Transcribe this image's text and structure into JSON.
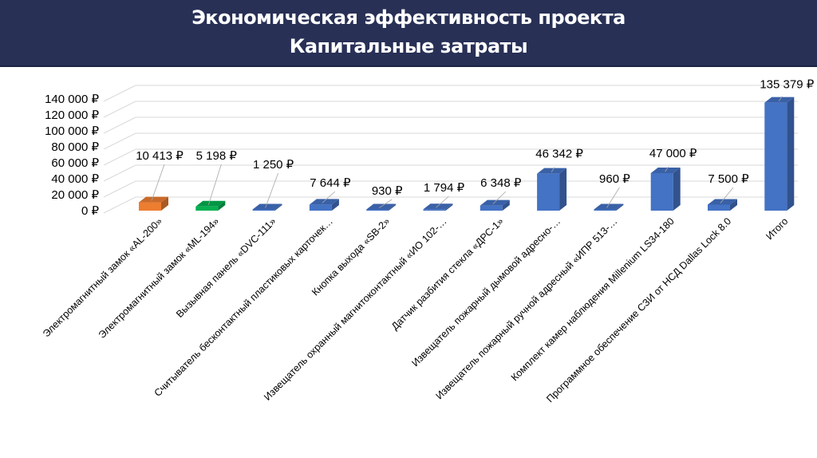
{
  "header": {
    "title_line1": "Экономическая эффективность проекта",
    "title_line2": "Капитальные затраты",
    "background_color": "#283056"
  },
  "chart_data": {
    "type": "bar",
    "style": "3d-column",
    "title": "Экономическая эффективность проекта — Капитальные затраты",
    "xlabel": "",
    "ylabel": "",
    "ylim": [
      0,
      140000
    ],
    "yticks": [
      "0 ₽",
      "20 000 ₽",
      "40 000 ₽",
      "60 000 ₽",
      "80 000 ₽",
      "100 000 ₽",
      "120 000 ₽",
      "140 000 ₽"
    ],
    "grid": true,
    "legend": "none",
    "categories": [
      "Электромагнитный замок «AL-200»",
      "Электромагнитный замок «ML-194»",
      "Вызывная панель «DVC-111»",
      "Считыватель бесконтактный пластиковых карточек…",
      "Кнопка выхода «SB-2»",
      "Извещатель охранный магнитоконтактный «ИО 102-…",
      "Датчик разбития стекла «ДРС-1»",
      "Извещатель пожарный дымовой адресно-…",
      "Извещатель пожарный ручной адресный «ИПР 513-…",
      "Комплект камер наблюдения Millenium LS34-180",
      "Программное обеспечение СЗИ от НСД Dallas Lock 8.0",
      "Итого"
    ],
    "values": [
      10413,
      5198,
      1250,
      7644,
      930,
      1794,
      6348,
      46342,
      960,
      47000,
      7500,
      135379
    ],
    "data_labels": [
      "10 413 ₽",
      "5 198 ₽",
      "1 250 ₽",
      "7 644 ₽",
      "930 ₽",
      "1 794 ₽",
      "6 348 ₽",
      "46 342 ₽",
      "960 ₽",
      "47 000 ₽",
      "7 500 ₽",
      "135 379 ₽"
    ],
    "colors": [
      "#ED7D31",
      "#00B050",
      "#4472C4",
      "#4472C4",
      "#4472C4",
      "#4472C4",
      "#4472C4",
      "#4472C4",
      "#4472C4",
      "#4472C4",
      "#4472C4",
      "#4472C4"
    ]
  }
}
